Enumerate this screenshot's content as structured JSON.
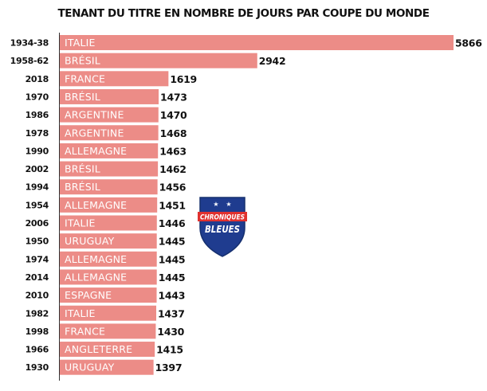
{
  "chart_data": {
    "type": "bar",
    "orientation": "horizontal",
    "title": "TENANT DU TITRE EN NOMBRE DE JOURS PAR COUPE DU MONDE",
    "xlim": [
      0,
      5866
    ],
    "bar_color": "#ec8c87",
    "rows": [
      {
        "year": "1934-38",
        "team": "ITALIE",
        "value": 5866
      },
      {
        "year": "1958-62",
        "team": "BRÉSIL",
        "value": 2942
      },
      {
        "year": "2018",
        "team": "FRANCE",
        "value": 1619
      },
      {
        "year": "1970",
        "team": "BRÉSIL",
        "value": 1473
      },
      {
        "year": "1986",
        "team": "ARGENTINE",
        "value": 1470
      },
      {
        "year": "1978",
        "team": "ARGENTINE",
        "value": 1468
      },
      {
        "year": "1990",
        "team": "ALLEMAGNE",
        "value": 1463
      },
      {
        "year": "2002",
        "team": "BRÉSIL",
        "value": 1462
      },
      {
        "year": "1994",
        "team": "BRÉSIL",
        "value": 1456
      },
      {
        "year": "1954",
        "team": "ALLEMAGNE",
        "value": 1451
      },
      {
        "year": "2006",
        "team": "ITALIE",
        "value": 1446
      },
      {
        "year": "1950",
        "team": "URUGUAY",
        "value": 1445
      },
      {
        "year": "1974",
        "team": "ALLEMAGNE",
        "value": 1445
      },
      {
        "year": "2014",
        "team": "ALLEMAGNE",
        "value": 1445
      },
      {
        "year": "2010",
        "team": "ESPAGNE",
        "value": 1443
      },
      {
        "year": "1982",
        "team": "ITALIE",
        "value": 1437
      },
      {
        "year": "1998",
        "team": "FRANCE",
        "value": 1430
      },
      {
        "year": "1966",
        "team": "ANGLETERRE",
        "value": 1415
      },
      {
        "year": "1930",
        "team": "URUGUAY",
        "value": 1397
      }
    ]
  },
  "logo": {
    "line1": "CHRONIQUES",
    "line2": "BLEUES",
    "colors": {
      "shield": "#1f3c8f",
      "accent": "#e0312f",
      "text": "#ffffff"
    }
  }
}
